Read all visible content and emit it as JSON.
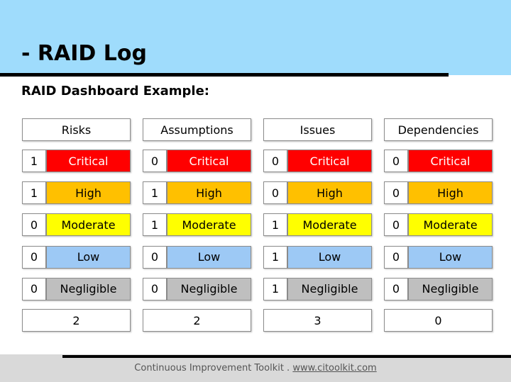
{
  "header": {
    "title": "- RAID Log",
    "subtitle": "RAID Dashboard Example:"
  },
  "levels": [
    {
      "label": "Critical",
      "color": "#ff0000",
      "text_color": "#ffffff"
    },
    {
      "label": "High",
      "color": "#ffc000",
      "text_color": "#000000"
    },
    {
      "label": "Moderate",
      "color": "#ffff00",
      "text_color": "#000000"
    },
    {
      "label": "Low",
      "color": "#9dc9f5",
      "text_color": "#000000"
    },
    {
      "label": "Negligible",
      "color": "#bfbfbf",
      "text_color": "#000000"
    }
  ],
  "columns": [
    {
      "name": "Risks",
      "counts": [
        1,
        1,
        0,
        0,
        0
      ],
      "total": 2
    },
    {
      "name": "Assumptions",
      "counts": [
        0,
        1,
        1,
        0,
        0
      ],
      "total": 2
    },
    {
      "name": "Issues",
      "counts": [
        0,
        0,
        1,
        1,
        1
      ],
      "total": 3
    },
    {
      "name": "Dependencies",
      "counts": [
        0,
        0,
        0,
        0,
        0
      ],
      "total": 0
    }
  ],
  "footer": {
    "text": "Continuous Improvement Toolkit .",
    "link": "www.citoolkit.com"
  }
}
